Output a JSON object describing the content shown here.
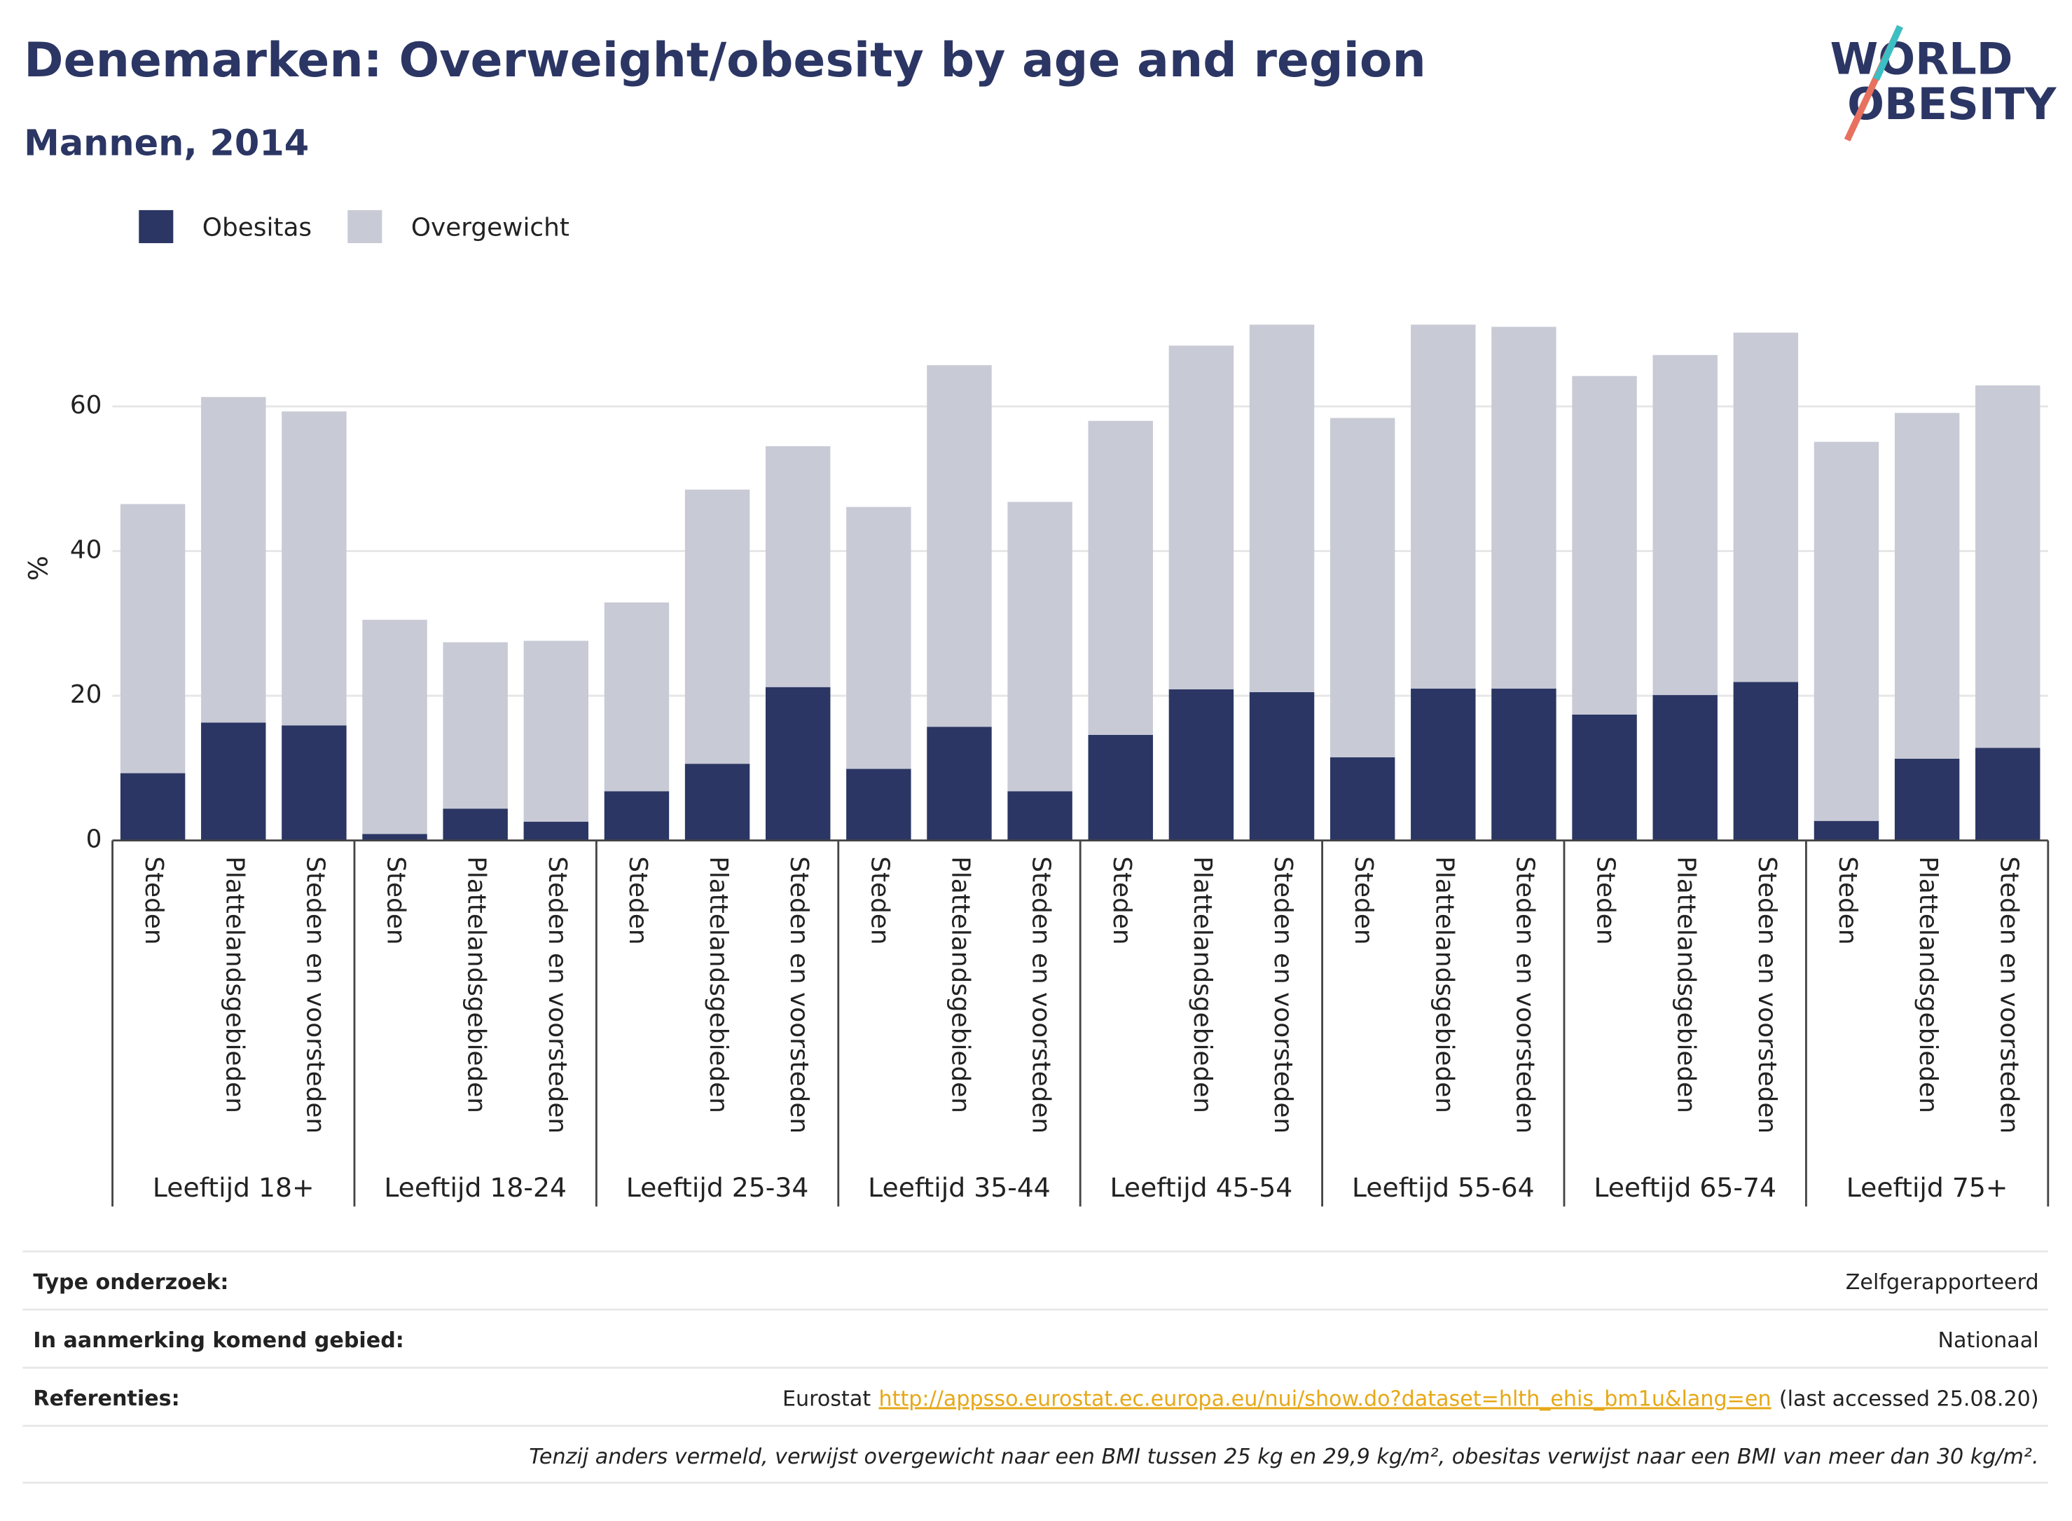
{
  "chart_data": {
    "type": "stacked_bar",
    "title": "Denemarken: Overweight/obesity by age and region",
    "subtitle": "Mannen, 2014",
    "y_label": "%",
    "logo": [
      "WORLD",
      "OBESITY"
    ],
    "groups": [
      "Leeftijd 18+",
      "Leeftijd 18-24",
      "Leeftijd 25-34",
      "Leeftijd 35-44",
      "Leeftijd 45-54",
      "Leeftijd 55-64",
      "Leeftijd 65-74",
      "Leeftijd 75+"
    ],
    "categories": [
      "Steden",
      "Plattelandsgebieden",
      "Steden en voorsteden",
      "Steden",
      "Plattelandsgebieden",
      "Steden en voorsteden",
      "Steden",
      "Plattelandsgebieden",
      "Steden en voorsteden",
      "Steden",
      "Plattelandsgebieden",
      "Steden en voorsteden",
      "Steden",
      "Plattelandsgebieden",
      "Steden en voorsteden",
      "Steden",
      "Plattelandsgebieden",
      "Steden en voorsteden",
      "Steden",
      "Plattelandsgebieden",
      "Steden en voorsteden",
      "Steden",
      "Plattelandsgebieden",
      "Steden en voorsteden"
    ],
    "series": [
      {
        "name": "Obesitas",
        "color": "#2b3664",
        "values": [
          9.3,
          16.3,
          15.9,
          0.9,
          4.4,
          2.6,
          6.8,
          10.6,
          21.2,
          9.9,
          15.7,
          6.8,
          14.6,
          20.9,
          20.5,
          11.5,
          21.0,
          21.0,
          17.4,
          20.1,
          21.9,
          2.7,
          11.3,
          12.8
        ]
      },
      {
        "name": "Overgewicht",
        "color": "#c8cad6",
        "values": [
          37.2,
          45.0,
          43.4,
          29.6,
          23.0,
          25.0,
          26.1,
          37.9,
          33.3,
          36.2,
          50.0,
          40.0,
          43.4,
          47.5,
          50.8,
          46.9,
          50.3,
          50.0,
          46.8,
          47.0,
          48.3,
          52.4,
          47.8,
          50.1
        ]
      }
    ],
    "ylim": [
      0,
      78
    ],
    "yticks": [
      0,
      20,
      40,
      60
    ],
    "grid": true,
    "legend": "top-left"
  },
  "footer": {
    "rows": [
      {
        "label": "Type onderzoek:",
        "value": "Zelfgerapporteerd"
      },
      {
        "label": "In aanmerking komend gebied:",
        "value": "Nationaal"
      }
    ],
    "references": {
      "label": "Referenties:",
      "source": "Eurostat",
      "link": "http://appsso.eurostat.ec.europa.eu/nui/show.do?dataset=hlth_ehis_bm1u&lang=en",
      "accessed": "(last accessed 25.08.20)"
    },
    "note": "Tenzij anders vermeld, verwijst overgewicht naar een BMI tussen 25 kg en 29,9 kg/m², obesitas verwijst naar een BMI van meer dan 30 kg/m²."
  }
}
